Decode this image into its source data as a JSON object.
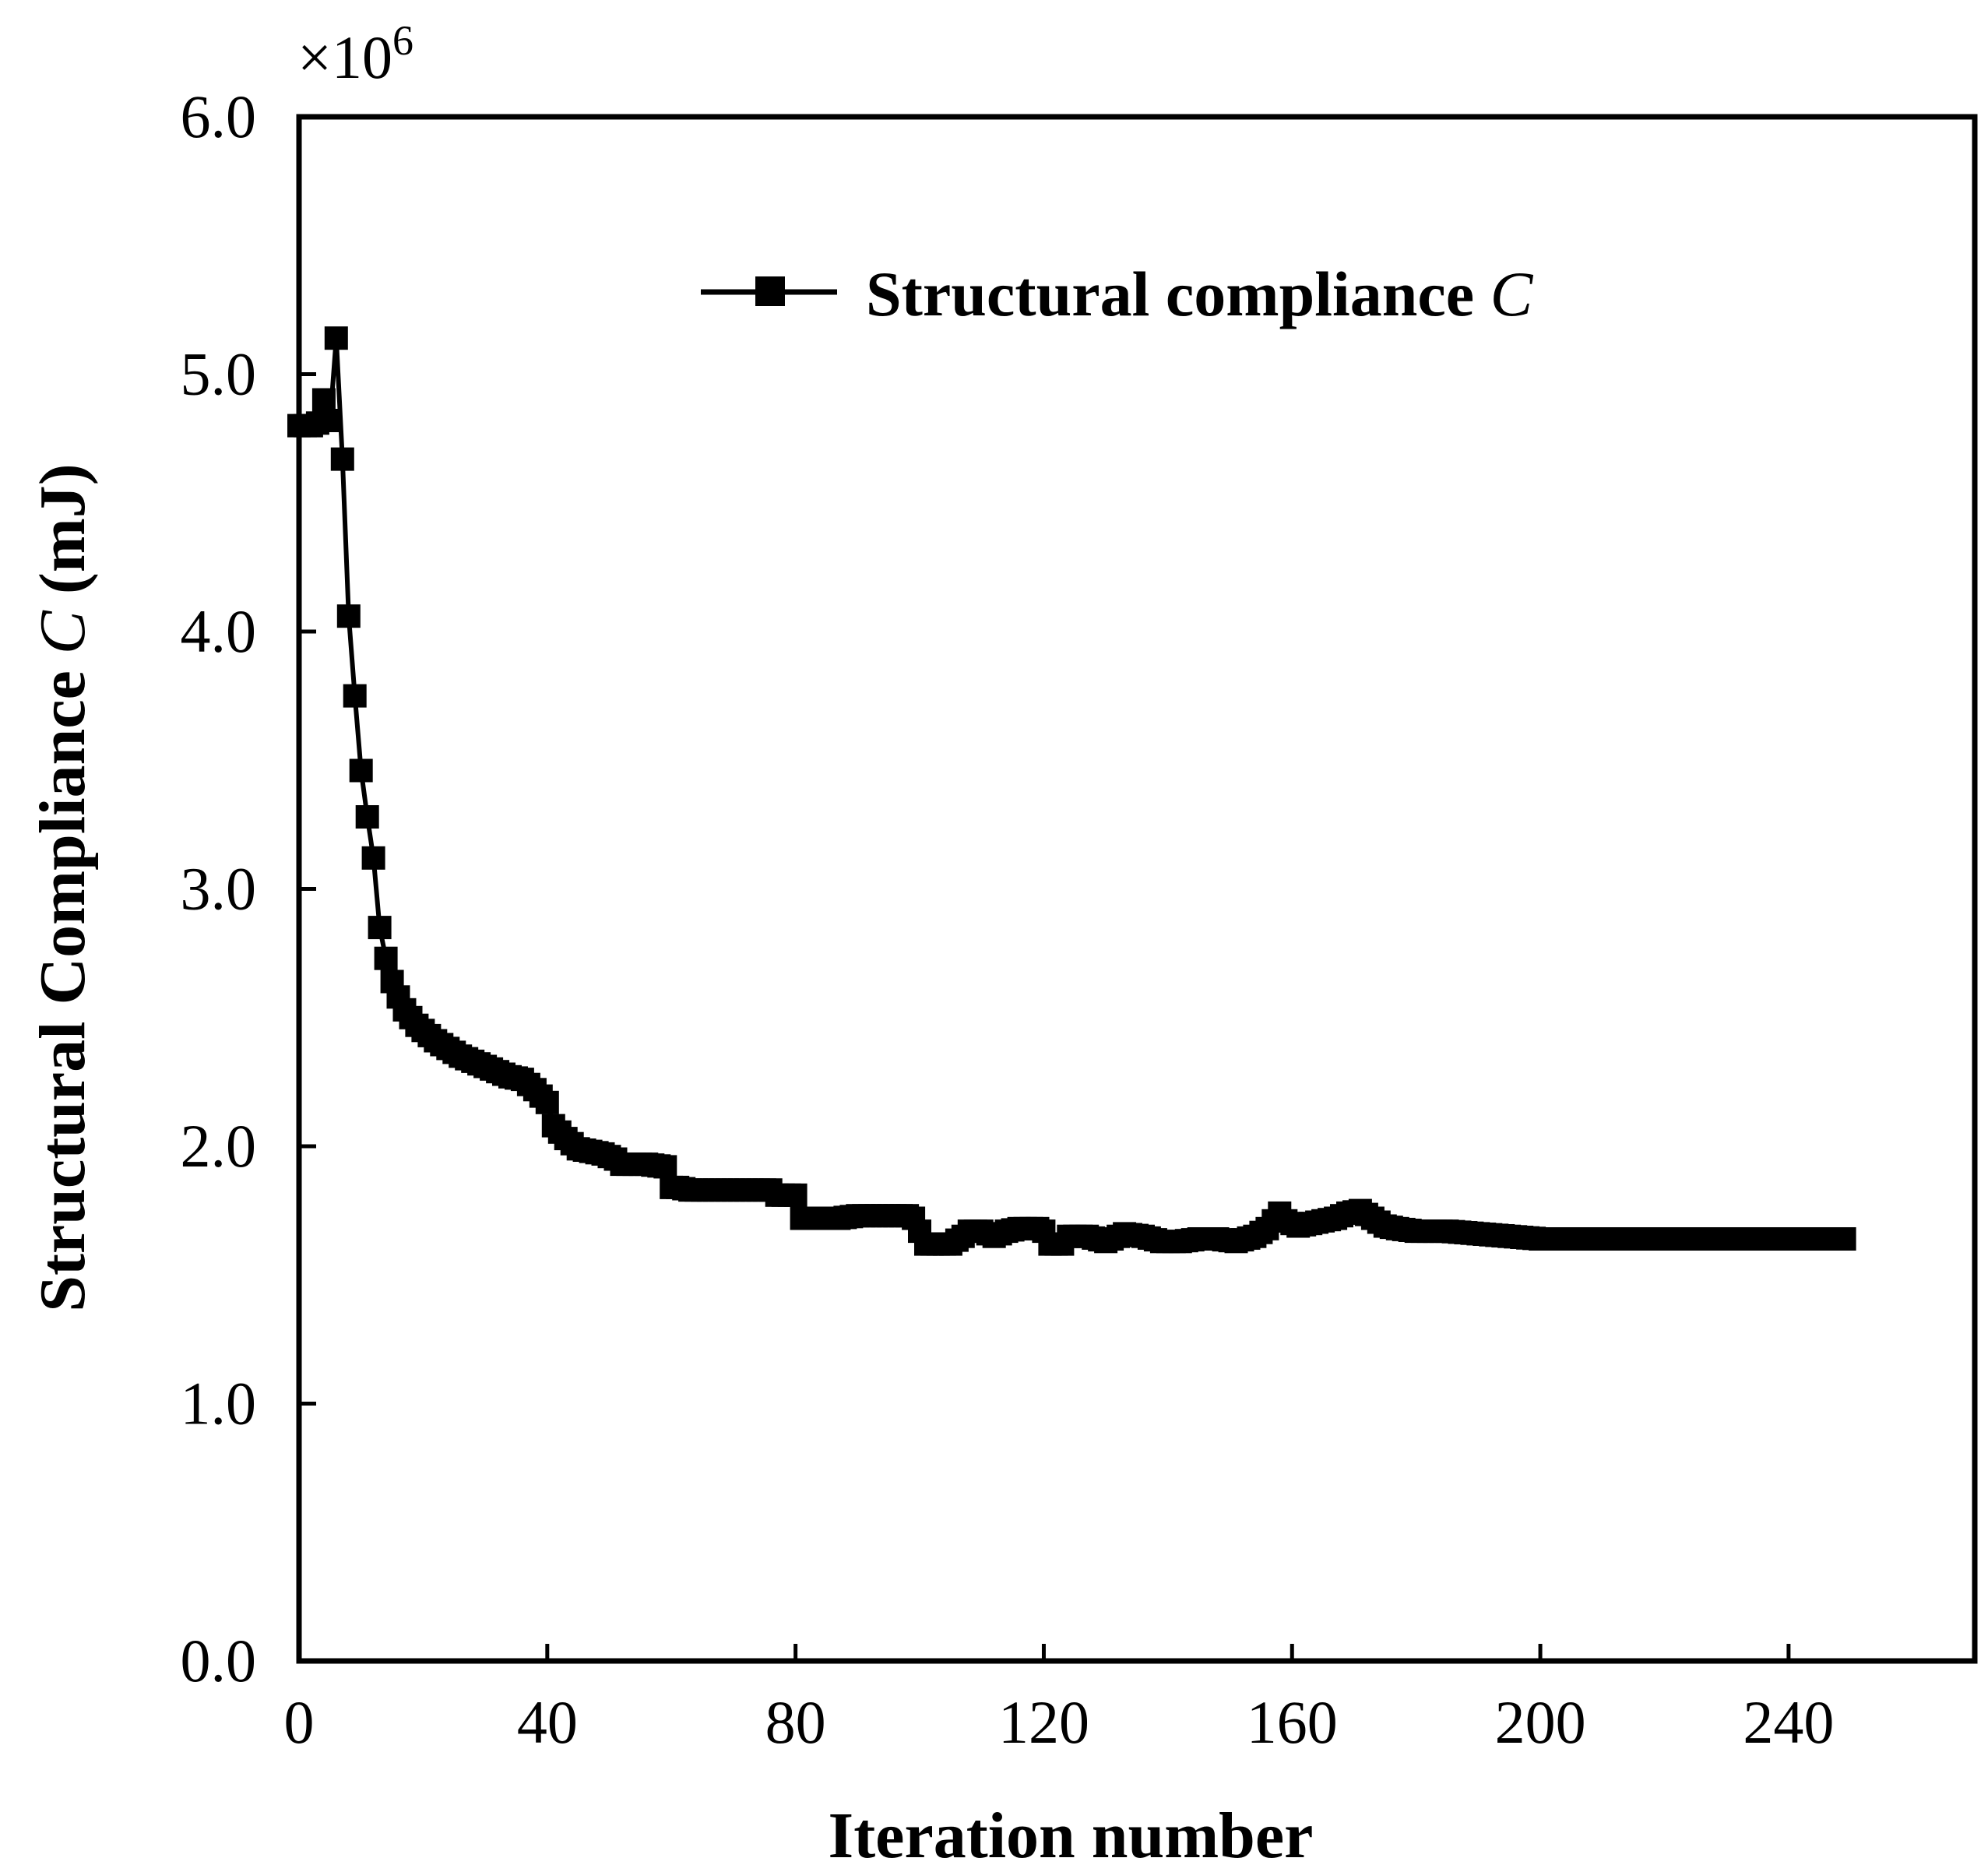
{
  "chart_data": {
    "type": "line",
    "title": "",
    "xlabel": "Iteration number",
    "ylabel": {
      "prefix": "Structural Compliance ",
      "var": "C",
      "suffix": " (mJ)"
    },
    "y_multiplier": {
      "base": "×10",
      "exp": "6"
    },
    "xlim": [
      0,
      270
    ],
    "ylim": [
      0,
      6
    ],
    "x_ticks": [
      0,
      40,
      80,
      120,
      160,
      200,
      240
    ],
    "y_ticks": [
      0,
      1,
      2,
      3,
      4,
      5,
      6
    ],
    "y_tick_labels": [
      "0.0",
      "1.0",
      "2.0",
      "3.0",
      "4.0",
      "5.0",
      "6.0"
    ],
    "legend": {
      "position": "top-right",
      "text": "Structural compliance ",
      "var": "C"
    },
    "series": [
      {
        "name": "Structural compliance C",
        "color": "#000000",
        "marker": "square",
        "keypoints": [
          [
            0,
            4.8
          ],
          [
            1,
            4.8
          ],
          [
            2,
            4.8
          ],
          [
            3,
            4.81
          ],
          [
            4,
            4.9
          ],
          [
            5,
            4.82
          ],
          [
            6,
            5.14
          ],
          [
            7,
            4.67
          ],
          [
            8,
            4.06
          ],
          [
            9,
            3.75
          ],
          [
            10,
            3.46
          ],
          [
            11,
            3.28
          ],
          [
            12,
            3.12
          ],
          [
            13,
            2.85
          ],
          [
            14,
            2.73
          ],
          [
            15,
            2.64
          ],
          [
            16,
            2.58
          ],
          [
            17,
            2.53
          ],
          [
            18,
            2.5
          ],
          [
            19,
            2.47
          ],
          [
            20,
            2.45
          ],
          [
            22,
            2.41
          ],
          [
            24,
            2.38
          ],
          [
            26,
            2.35
          ],
          [
            28,
            2.33
          ],
          [
            30,
            2.31
          ],
          [
            32,
            2.29
          ],
          [
            34,
            2.27
          ],
          [
            36,
            2.26
          ],
          [
            38,
            2.22
          ],
          [
            40,
            2.17
          ],
          [
            41,
            2.08
          ],
          [
            43,
            2.03
          ],
          [
            45,
            1.99
          ],
          [
            47,
            1.98
          ],
          [
            49,
            1.97
          ],
          [
            51,
            1.95
          ],
          [
            52,
            1.93
          ],
          [
            56,
            1.93
          ],
          [
            59,
            1.92
          ],
          [
            60,
            1.84
          ],
          [
            61,
            1.84
          ],
          [
            63,
            1.83
          ],
          [
            70,
            1.83
          ],
          [
            76,
            1.83
          ],
          [
            77,
            1.81
          ],
          [
            80,
            1.81
          ],
          [
            81,
            1.72
          ],
          [
            84,
            1.72
          ],
          [
            87,
            1.72
          ],
          [
            90,
            1.73
          ],
          [
            94,
            1.73
          ],
          [
            98,
            1.73
          ],
          [
            99,
            1.72
          ],
          [
            101,
            1.62
          ],
          [
            103,
            1.62
          ],
          [
            105,
            1.62
          ],
          [
            107,
            1.65
          ],
          [
            108,
            1.67
          ],
          [
            110,
            1.67
          ],
          [
            112,
            1.65
          ],
          [
            114,
            1.67
          ],
          [
            116,
            1.68
          ],
          [
            119,
            1.68
          ],
          [
            120,
            1.67
          ],
          [
            121,
            1.62
          ],
          [
            123,
            1.62
          ],
          [
            124,
            1.65
          ],
          [
            127,
            1.65
          ],
          [
            130,
            1.63
          ],
          [
            133,
            1.66
          ],
          [
            136,
            1.65
          ],
          [
            139,
            1.63
          ],
          [
            142,
            1.63
          ],
          [
            145,
            1.64
          ],
          [
            148,
            1.64
          ],
          [
            151,
            1.63
          ],
          [
            154,
            1.65
          ],
          [
            156,
            1.68
          ],
          [
            158,
            1.74
          ],
          [
            159,
            1.71
          ],
          [
            161,
            1.69
          ],
          [
            163,
            1.7
          ],
          [
            165,
            1.71
          ],
          [
            167,
            1.72
          ],
          [
            169,
            1.74
          ],
          [
            171,
            1.75
          ],
          [
            173,
            1.72
          ],
          [
            175,
            1.69
          ],
          [
            177,
            1.68
          ],
          [
            180,
            1.67
          ],
          [
            185,
            1.67
          ],
          [
            190,
            1.66
          ],
          [
            195,
            1.65
          ],
          [
            200,
            1.64
          ],
          [
            205,
            1.64
          ],
          [
            220,
            1.64
          ],
          [
            240,
            1.64
          ],
          [
            249,
            1.64
          ]
        ]
      }
    ]
  }
}
